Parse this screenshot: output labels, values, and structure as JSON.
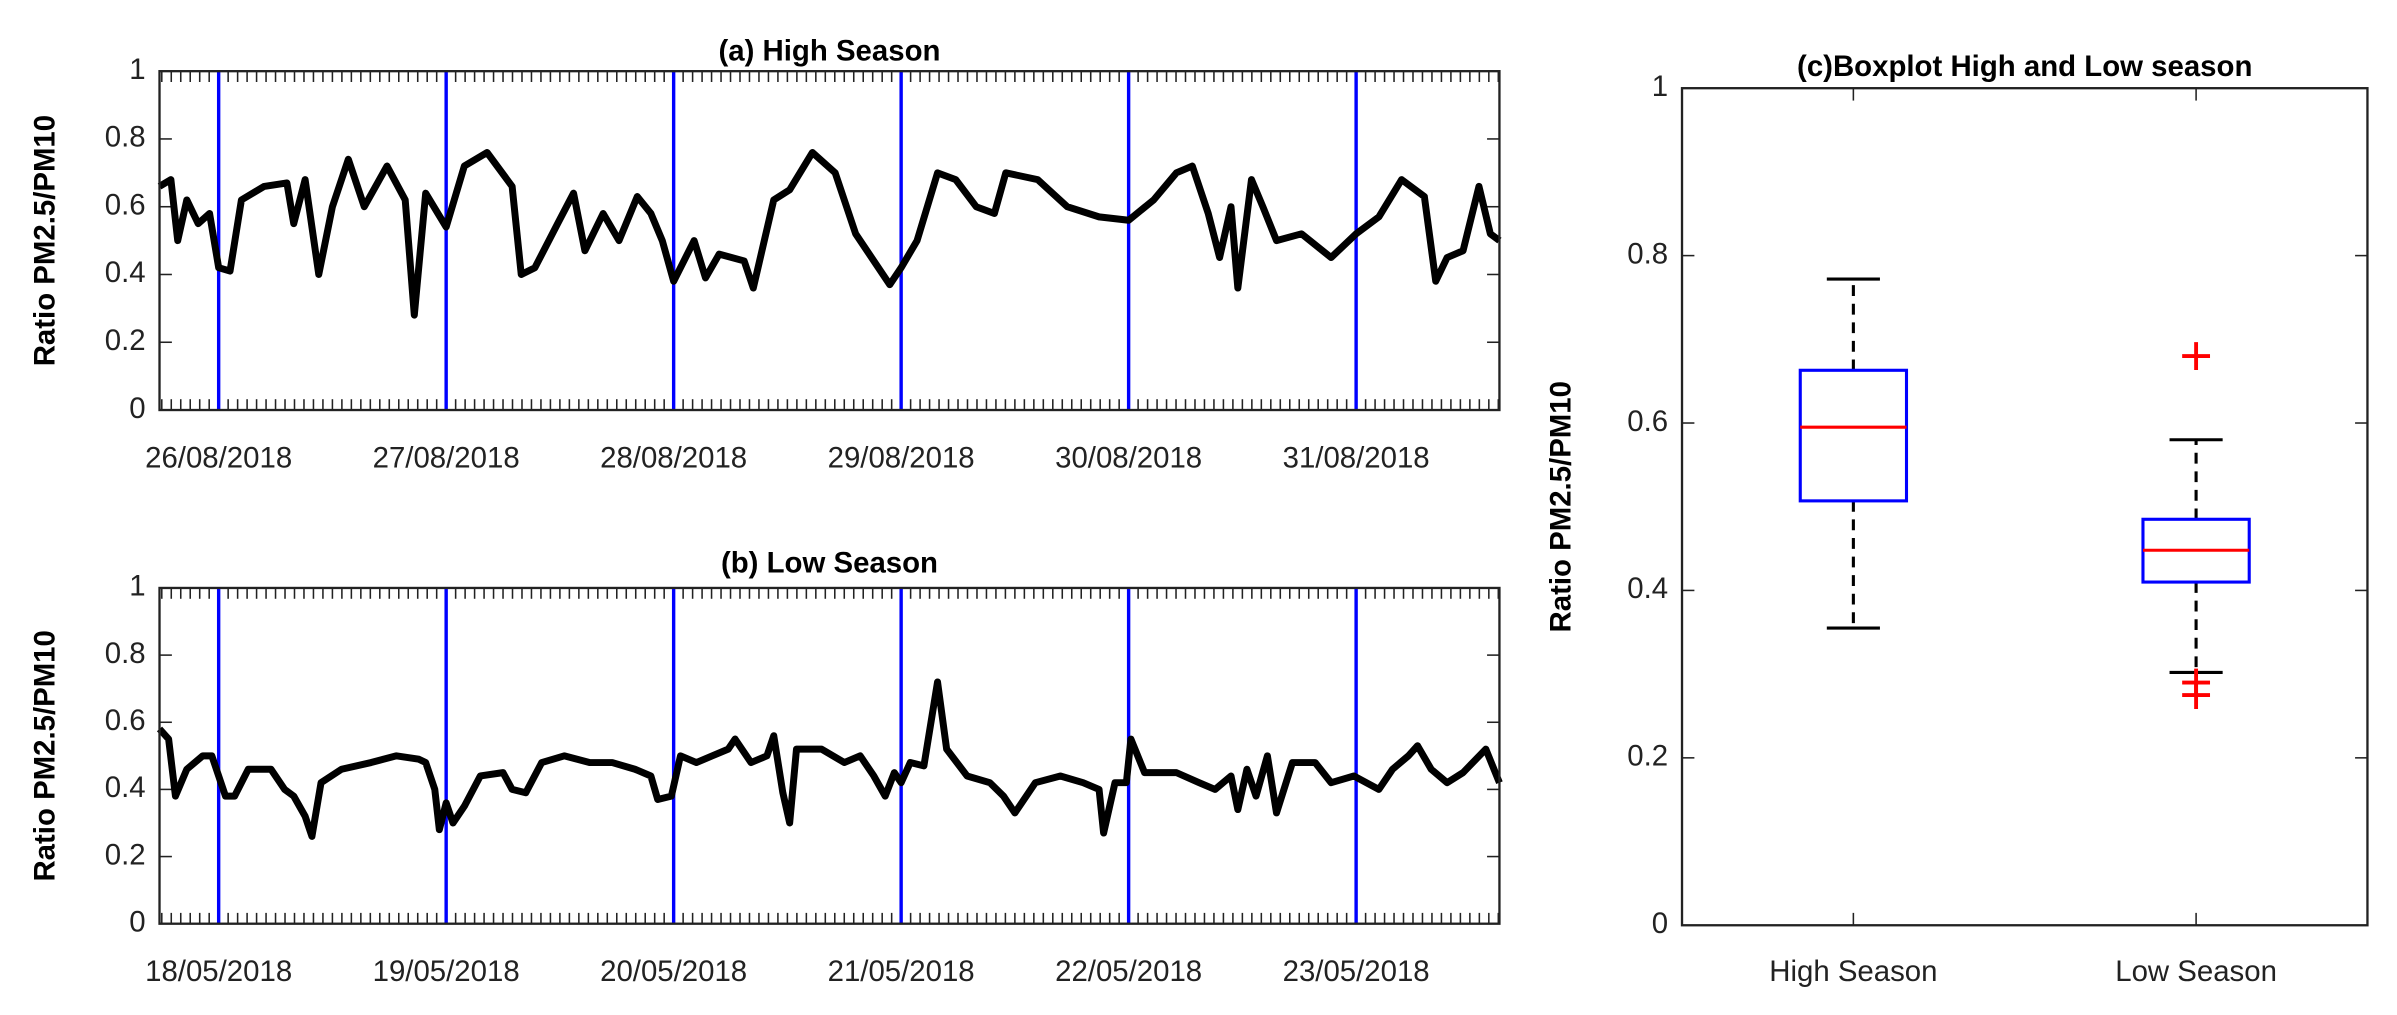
{
  "chart_data": [
    {
      "type": "line",
      "title": "(a)  High Season",
      "ylabel": "Ratio PM2.5/PM10",
      "xlim": [
        -0.26,
        5.63
      ],
      "xticks": [
        {
          "value": 0,
          "label": "26/08/2018"
        },
        {
          "value": 1,
          "label": "27/08/2018"
        },
        {
          "value": 2,
          "label": "28/08/2018"
        },
        {
          "value": 3,
          "label": "29/08/2018"
        },
        {
          "value": 4,
          "label": "30/08/2018"
        },
        {
          "value": 5,
          "label": "31/08/2018"
        }
      ],
      "ylim": [
        0,
        1
      ],
      "yticks": [
        0,
        0.2,
        0.4,
        0.6,
        0.8,
        1
      ],
      "tick_line_color": "#0000ff",
      "series": [
        {
          "color": "#000000",
          "x": [
            -0.26,
            -0.21,
            -0.18,
            -0.14,
            -0.09,
            -0.04,
            0,
            0.05,
            0.1,
            0.2,
            0.3,
            0.33,
            0.38,
            0.44,
            0.5,
            0.57,
            0.64,
            0.74,
            0.82,
            0.86,
            0.91,
            1.0,
            1.08,
            1.18,
            1.29,
            1.33,
            1.39,
            1.49,
            1.56,
            1.61,
            1.69,
            1.76,
            1.84,
            1.9,
            1.95,
            2.0,
            2.09,
            2.14,
            2.2,
            2.31,
            2.35,
            2.44,
            2.51,
            2.61,
            2.71,
            2.8,
            2.88,
            2.95,
            3.0,
            3.07,
            3.16,
            3.24,
            3.33,
            3.41,
            3.46,
            3.6,
            3.73,
            3.87,
            4.0,
            4.11,
            4.21,
            4.28,
            4.35,
            4.4,
            4.45,
            4.48,
            4.54,
            4.59,
            4.65,
            4.76,
            4.89,
            5.0,
            5.1,
            5.2,
            5.3,
            5.35,
            5.4,
            5.47,
            5.54,
            5.59,
            5.63
          ],
          "values": [
            0.66,
            0.68,
            0.5,
            0.62,
            0.55,
            0.58,
            0.42,
            0.41,
            0.62,
            0.66,
            0.67,
            0.55,
            0.68,
            0.4,
            0.6,
            0.74,
            0.6,
            0.72,
            0.62,
            0.28,
            0.64,
            0.54,
            0.72,
            0.76,
            0.66,
            0.4,
            0.42,
            0.55,
            0.64,
            0.47,
            0.58,
            0.5,
            0.63,
            0.58,
            0.5,
            0.38,
            0.5,
            0.39,
            0.46,
            0.44,
            0.36,
            0.62,
            0.65,
            0.76,
            0.7,
            0.52,
            0.44,
            0.37,
            0.42,
            0.5,
            0.7,
            0.68,
            0.6,
            0.58,
            0.7,
            0.68,
            0.6,
            0.57,
            0.56,
            0.62,
            0.7,
            0.72,
            0.58,
            0.45,
            0.6,
            0.36,
            0.68,
            0.6,
            0.5,
            0.52,
            0.45,
            0.52,
            0.57,
            0.68,
            0.63,
            0.38,
            0.45,
            0.47,
            0.66,
            0.52,
            0.5
          ]
        }
      ]
    },
    {
      "type": "line",
      "title": "(b)  Low Season",
      "ylabel": "Ratio PM2.5/PM10",
      "xlim": [
        -0.26,
        5.63
      ],
      "xticks": [
        {
          "value": 0,
          "label": "18/05/2018"
        },
        {
          "value": 1,
          "label": "19/05/2018"
        },
        {
          "value": 2,
          "label": "20/05/2018"
        },
        {
          "value": 3,
          "label": "21/05/2018"
        },
        {
          "value": 4,
          "label": "22/05/2018"
        },
        {
          "value": 5,
          "label": "23/05/2018"
        }
      ],
      "ylim": [
        0,
        1
      ],
      "yticks": [
        0,
        0.2,
        0.4,
        0.6,
        0.8,
        1
      ],
      "tick_line_color": "#0000ff",
      "series": [
        {
          "color": "#000000",
          "x": [
            -0.26,
            -0.22,
            -0.19,
            -0.14,
            -0.07,
            -0.03,
            0.03,
            0.07,
            0.13,
            0.23,
            0.29,
            0.33,
            0.38,
            0.41,
            0.45,
            0.54,
            0.67,
            0.78,
            0.88,
            0.91,
            0.95,
            0.97,
            1.0,
            1.03,
            1.08,
            1.15,
            1.25,
            1.29,
            1.35,
            1.42,
            1.52,
            1.63,
            1.73,
            1.83,
            1.9,
            1.93,
            1.99,
            2.03,
            2.1,
            2.17,
            2.24,
            2.27,
            2.34,
            2.41,
            2.44,
            2.48,
            2.51,
            2.54,
            2.65,
            2.75,
            2.82,
            2.88,
            2.93,
            2.97,
            3.0,
            3.04,
            3.1,
            3.16,
            3.2,
            3.29,
            3.39,
            3.45,
            3.5,
            3.59,
            3.7,
            3.8,
            3.87,
            3.89,
            3.94,
            3.99,
            4.01,
            4.07,
            4.21,
            4.31,
            4.38,
            4.45,
            4.48,
            4.52,
            4.56,
            4.61,
            4.65,
            4.72,
            4.82,
            4.89,
            4.99,
            5.1,
            5.16,
            5.23,
            5.27,
            5.33,
            5.4,
            5.47,
            5.57,
            5.63
          ],
          "values": [
            0.58,
            0.55,
            0.38,
            0.46,
            0.5,
            0.5,
            0.38,
            0.38,
            0.46,
            0.46,
            0.4,
            0.38,
            0.32,
            0.26,
            0.42,
            0.46,
            0.48,
            0.5,
            0.49,
            0.48,
            0.4,
            0.28,
            0.36,
            0.3,
            0.35,
            0.44,
            0.45,
            0.4,
            0.39,
            0.48,
            0.5,
            0.48,
            0.48,
            0.46,
            0.44,
            0.37,
            0.38,
            0.5,
            0.48,
            0.5,
            0.52,
            0.55,
            0.48,
            0.5,
            0.56,
            0.39,
            0.3,
            0.52,
            0.52,
            0.48,
            0.5,
            0.44,
            0.38,
            0.45,
            0.42,
            0.48,
            0.47,
            0.72,
            0.52,
            0.44,
            0.42,
            0.38,
            0.33,
            0.42,
            0.44,
            0.42,
            0.4,
            0.27,
            0.42,
            0.42,
            0.55,
            0.45,
            0.45,
            0.42,
            0.4,
            0.44,
            0.34,
            0.46,
            0.38,
            0.5,
            0.33,
            0.48,
            0.48,
            0.42,
            0.44,
            0.4,
            0.46,
            0.5,
            0.53,
            0.46,
            0.42,
            0.45,
            0.52,
            0.42
          ]
        }
      ]
    },
    {
      "type": "box",
      "title": "(c)Boxplot High and Low season",
      "ylabel": "Ratio PM2.5/PM10",
      "categories": [
        "High Season",
        "Low Season"
      ],
      "ylim": [
        0,
        1
      ],
      "yticks": [
        0,
        0.2,
        0.4,
        0.6,
        0.8,
        1
      ],
      "box_color": "#0000ff",
      "median_color": "#ff0000",
      "whisker_color": "#000000",
      "flier_color": "#ff0000",
      "boxes": [
        {
          "whislo": 0.355,
          "q1": 0.507,
          "median": 0.595,
          "q3": 0.663,
          "whishi": 0.772,
          "fliers": []
        },
        {
          "whislo": 0.302,
          "q1": 0.41,
          "median": 0.448,
          "q3": 0.485,
          "whishi": 0.58,
          "fliers": [
            0.68,
            0.29,
            0.275
          ]
        }
      ]
    }
  ]
}
